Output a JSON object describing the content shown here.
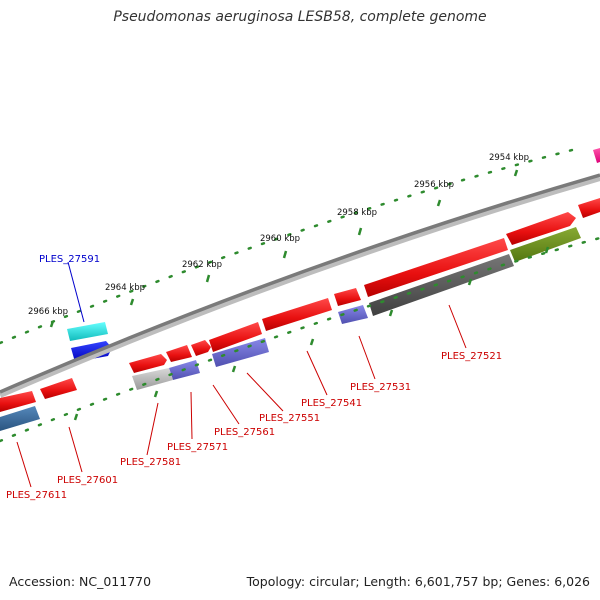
{
  "header": {
    "title": "Pseudomonas aeruginosa LESB58, complete genome"
  },
  "footer": {
    "accession": "Accession: NC_011770",
    "summary": "Topology: circular; Length: 6,601,757 bp; Genes: 6,026"
  },
  "colors": {
    "backbone": "#8a8a8a",
    "tick": "#2e8b2e",
    "gene_red": "#ee1111",
    "label_red": "#cc0000",
    "label_blue": "#0000cc",
    "pink": "#ff1493",
    "cyan": "#22dddd",
    "blue": "#0000ee",
    "slate": "#6666cc",
    "steel": "#336699",
    "gray": "#aaaaaa",
    "darkgray": "#555555",
    "olive": "#6b8e23"
  },
  "kbp_labels": [
    "2954 kbp",
    "2956 kbp",
    "2958 kbp",
    "2960 kbp",
    "2962 kbp",
    "2964 kbp",
    "2966 kbp"
  ],
  "genes": {
    "ples_27521": "PLES_27521",
    "ples_27531": "PLES_27531",
    "ples_27541": "PLES_27541",
    "ples_27551": "PLES_27551",
    "ples_27561": "PLES_27561",
    "ples_27571": "PLES_27571",
    "ples_27581": "PLES_27581",
    "ples_27591": "PLES_27591",
    "ples_27601": "PLES_27601",
    "ples_27611": "PLES_27611"
  }
}
